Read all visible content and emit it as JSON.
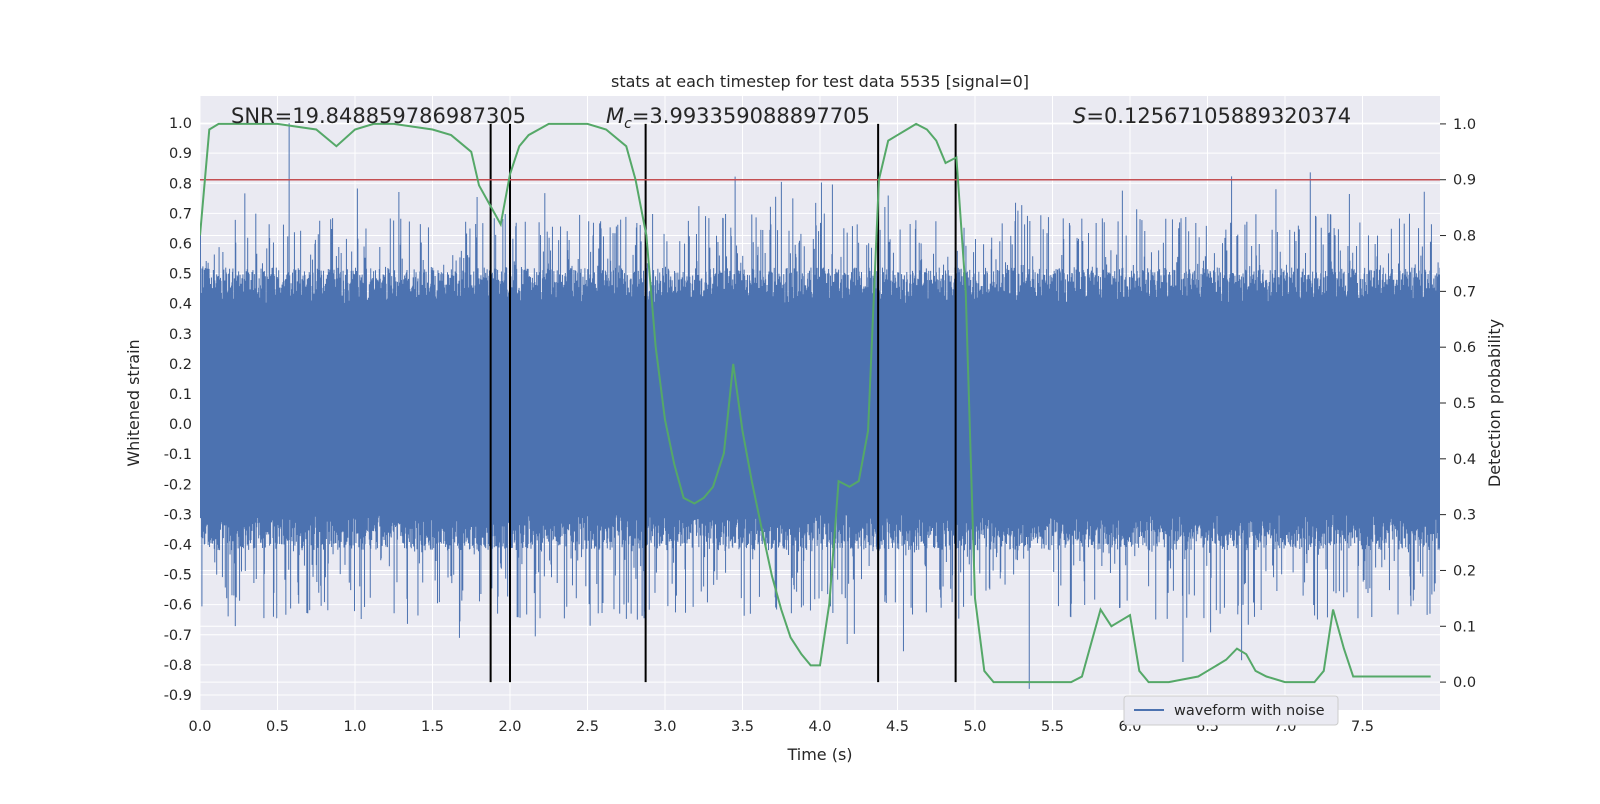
{
  "chart_data": {
    "type": "line",
    "title": "stats at each timestep for test data 5535 [signal=0]",
    "xlabel": "Time (s)",
    "ylabel_left": "Whitened strain",
    "ylabel_right": "Detection probability",
    "xlim": [
      0,
      8
    ],
    "ylim_left": [
      -0.95,
      1.09
    ],
    "ylim_right": [
      -0.05,
      1.05
    ],
    "grid": true,
    "legend_position": "lower right",
    "x_ticks": [
      "0.0",
      "0.5",
      "1.0",
      "1.5",
      "2.0",
      "2.5",
      "3.0",
      "3.5",
      "4.0",
      "4.5",
      "5.0",
      "5.5",
      "6.0",
      "6.5",
      "7.0",
      "7.5"
    ],
    "y_ticks_left": [
      "-0.9",
      "-0.8",
      "-0.7",
      "-0.6",
      "-0.5",
      "-0.4",
      "-0.3",
      "-0.2",
      "-0.1",
      "0.0",
      "0.1",
      "0.2",
      "0.3",
      "0.4",
      "0.5",
      "0.6",
      "0.7",
      "0.8",
      "0.9",
      "1.0"
    ],
    "y_ticks_right": [
      "0.0",
      "0.1",
      "0.2",
      "0.3",
      "0.4",
      "0.5",
      "0.6",
      "0.7",
      "0.8",
      "0.9",
      "1.0"
    ],
    "annotations": {
      "snr": "SNR=19.848859786987305",
      "mc_symbol": "M",
      "mc_sub": "c",
      "mc_value": "=3.993359088897705",
      "s_symbol": "S",
      "s_value": "=0.12567105889320374"
    },
    "threshold": {
      "value": 0.9,
      "axis": "right",
      "color": "#c44e52"
    },
    "vertical_markers": [
      1.875,
      2.0,
      2.875,
      4.375,
      4.875
    ],
    "series": [
      {
        "name": "waveform with noise",
        "axis": "left",
        "kind": "noise",
        "color": "#4c72b0",
        "baseline_low": -0.35,
        "baseline_high": 0.45,
        "typical_peak": 0.6,
        "typical_trough": -0.55,
        "max": 1.0,
        "min": -0.88
      },
      {
        "axis": "right",
        "color": "#55a868",
        "x": [
          0.0,
          0.06,
          0.12,
          0.25,
          0.5,
          0.75,
          0.88,
          1.0,
          1.12,
          1.25,
          1.5,
          1.62,
          1.75,
          1.8,
          1.88,
          1.94,
          2.0,
          2.06,
          2.12,
          2.25,
          2.38,
          2.5,
          2.62,
          2.75,
          2.81,
          2.88,
          2.94,
          3.0,
          3.06,
          3.12,
          3.19,
          3.25,
          3.31,
          3.38,
          3.44,
          3.5,
          3.56,
          3.62,
          3.69,
          3.75,
          3.81,
          3.88,
          3.94,
          4.0,
          4.06,
          4.12,
          4.19,
          4.25,
          4.31,
          4.38,
          4.44,
          4.5,
          4.56,
          4.62,
          4.69,
          4.75,
          4.81,
          4.88,
          4.94,
          5.0,
          5.06,
          5.12,
          5.25,
          5.5,
          5.62,
          5.69,
          5.75,
          5.81,
          5.88,
          5.94,
          6.0,
          6.06,
          6.12,
          6.25,
          6.44,
          6.5,
          6.56,
          6.62,
          6.69,
          6.75,
          6.81,
          6.88,
          7.0,
          7.19,
          7.25,
          7.31,
          7.38,
          7.44,
          7.5,
          7.75,
          7.94
        ],
        "y": [
          0.8,
          0.99,
          1.0,
          1.0,
          1.0,
          0.99,
          0.96,
          0.99,
          1.0,
          1.0,
          0.99,
          0.98,
          0.95,
          0.89,
          0.85,
          0.82,
          0.91,
          0.96,
          0.98,
          1.0,
          1.0,
          1.0,
          0.99,
          0.96,
          0.9,
          0.8,
          0.6,
          0.47,
          0.39,
          0.33,
          0.32,
          0.33,
          0.35,
          0.41,
          0.57,
          0.45,
          0.36,
          0.28,
          0.19,
          0.13,
          0.08,
          0.05,
          0.03,
          0.03,
          0.14,
          0.36,
          0.35,
          0.36,
          0.45,
          0.9,
          0.97,
          0.98,
          0.99,
          1.0,
          0.99,
          0.97,
          0.93,
          0.94,
          0.7,
          0.15,
          0.02,
          0.0,
          0.0,
          0.0,
          0.0,
          0.01,
          0.07,
          0.13,
          0.1,
          0.11,
          0.12,
          0.02,
          0.0,
          0.0,
          0.01,
          0.02,
          0.03,
          0.04,
          0.06,
          0.05,
          0.02,
          0.01,
          0.0,
          0.0,
          0.02,
          0.13,
          0.06,
          0.01,
          0.01,
          0.01,
          0.01
        ]
      }
    ]
  }
}
